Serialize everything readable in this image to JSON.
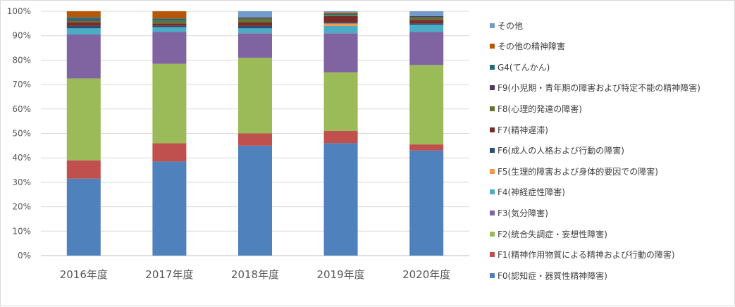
{
  "chart_data": {
    "type": "bar",
    "stacked": true,
    "percent": true,
    "categories": [
      "2016年度",
      "2017年度",
      "2018年度",
      "2019年度",
      "2020年度"
    ],
    "ylim": [
      0,
      100
    ],
    "yticks": [
      "0%",
      "10%",
      "20%",
      "30%",
      "40%",
      "50%",
      "60%",
      "70%",
      "80%",
      "90%",
      "100%"
    ],
    "grid": true,
    "legend_position": "right",
    "series": [
      {
        "name": "F0(認知症・器質性精神障害)",
        "color": "#4f81bd",
        "values": [
          31.5,
          38.5,
          45.0,
          46.0,
          43.0
        ]
      },
      {
        "name": "F1(精神作用物質による精神および行動の障害)",
        "color": "#c0504d",
        "values": [
          7.5,
          7.5,
          5.0,
          5.0,
          2.5
        ]
      },
      {
        "name": "F2(統合失調症・妄想性障害)",
        "color": "#9bbb59",
        "values": [
          33.5,
          32.5,
          31.0,
          24.0,
          32.5
        ]
      },
      {
        "name": "F3(気分障害)",
        "color": "#8064a2",
        "values": [
          18.0,
          13.0,
          10.0,
          16.0,
          13.5
        ]
      },
      {
        "name": "F4(神経症性障害)",
        "color": "#4bacc6",
        "values": [
          2.5,
          2.0,
          2.0,
          3.0,
          3.0
        ]
      },
      {
        "name": "F5(生理的障害および身体的要因での障害)",
        "color": "#f79646",
        "values": [
          0.0,
          0.0,
          0.0,
          1.0,
          0.0
        ]
      },
      {
        "name": "F6(成人の人格および行動の障害)",
        "color": "#2c4d75",
        "values": [
          1.0,
          0.5,
          1.0,
          0.5,
          0.5
        ]
      },
      {
        "name": "F7(精神遅滞)",
        "color": "#772c2a",
        "values": [
          1.5,
          1.0,
          1.5,
          2.5,
          1.5
        ]
      },
      {
        "name": "F8(心理的発達の障害)",
        "color": "#5f7530",
        "values": [
          0.5,
          1.0,
          1.5,
          0.5,
          1.0
        ]
      },
      {
        "name": "F9(小児期・青年期の障害および特定不能の精神障害)",
        "color": "#4d3b62",
        "values": [
          0.5,
          0.0,
          0.5,
          0.0,
          0.5
        ]
      },
      {
        "name": "G4(てんかん)",
        "color": "#276a7c",
        "values": [
          1.0,
          1.0,
          0.0,
          0.5,
          0.0
        ]
      },
      {
        "name": "その他の精神障害",
        "color": "#b65708",
        "values": [
          2.5,
          3.0,
          0.0,
          0.5,
          0.0
        ]
      },
      {
        "name": "その他",
        "color": "#729aca",
        "values": [
          0.0,
          0.0,
          2.5,
          0.5,
          2.0
        ]
      }
    ]
  }
}
